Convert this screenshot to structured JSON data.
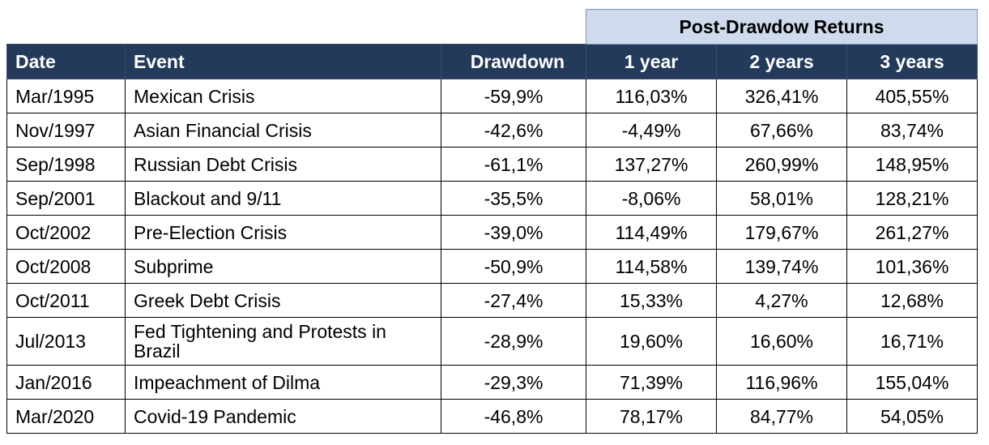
{
  "group_header": "Post-Drawdow Returns",
  "columns": {
    "date": "Date",
    "event": "Event",
    "drawdown": "Drawdown",
    "y1": "1 year",
    "y2": "2 years",
    "y3": "3 years"
  },
  "rows": [
    {
      "date": "Mar/1995",
      "event": "Mexican Crisis",
      "drawdown": "-59,9%",
      "y1": "116,03%",
      "y2": "326,41%",
      "y3": "405,55%"
    },
    {
      "date": "Nov/1997",
      "event": "Asian Financial Crisis",
      "drawdown": "-42,6%",
      "y1": "-4,49%",
      "y2": "67,66%",
      "y3": "83,74%"
    },
    {
      "date": "Sep/1998",
      "event": "Russian Debt Crisis",
      "drawdown": "-61,1%",
      "y1": "137,27%",
      "y2": "260,99%",
      "y3": "148,95%"
    },
    {
      "date": "Sep/2001",
      "event": "Blackout and 9/11",
      "drawdown": "-35,5%",
      "y1": "-8,06%",
      "y2": "58,01%",
      "y3": "128,21%"
    },
    {
      "date": "Oct/2002",
      "event": "Pre-Election Crisis",
      "drawdown": "-39,0%",
      "y1": "114,49%",
      "y2": "179,67%",
      "y3": "261,27%"
    },
    {
      "date": "Oct/2008",
      "event": "Subprime",
      "drawdown": "-50,9%",
      "y1": "114,58%",
      "y2": "139,74%",
      "y3": "101,36%"
    },
    {
      "date": "Oct/2011",
      "event": "Greek Debt Crisis",
      "drawdown": "-27,4%",
      "y1": "15,33%",
      "y2": "4,27%",
      "y3": "12,68%"
    },
    {
      "date": "Jul/2013",
      "event": "Fed Tightening and Protests in Brazil",
      "drawdown": "-28,9%",
      "y1": "19,60%",
      "y2": "16,60%",
      "y3": "16,71%"
    },
    {
      "date": "Jan/2016",
      "event": "Impeachment of Dilma",
      "drawdown": "-29,3%",
      "y1": "71,39%",
      "y2": "116,96%",
      "y3": "155,04%"
    },
    {
      "date": "Mar/2020",
      "event": "Covid-19 Pandemic",
      "drawdown": "-46,8%",
      "y1": "78,17%",
      "y2": "84,77%",
      "y3": "54,05%"
    }
  ]
}
